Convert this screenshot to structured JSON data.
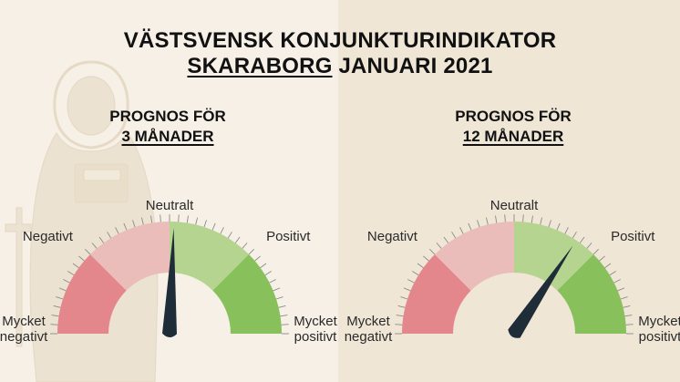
{
  "title": {
    "line1": "VÄSTSVENSK KONJUNKTURINDIKATOR",
    "line2_region": "SKARABORG",
    "line2_rest": "JANUARI 2021"
  },
  "colors": {
    "negative_strong": "#e3878c",
    "negative_light": "#eabdba",
    "positive_light": "#b5d48f",
    "positive_strong": "#88c05c",
    "needle": "#1e2d38",
    "tick": "#8a8a8a"
  },
  "chart_data": [
    {
      "type": "gauge",
      "title_line1": "PROGNOS FÖR",
      "title_line2": "3 MÅNADER",
      "labels": [
        "Mycket negativt",
        "Negativt",
        "Neutralt",
        "Positivt",
        "Mycket positivt"
      ],
      "scale": [
        -2,
        2
      ],
      "value": 0.05
    },
    {
      "type": "gauge",
      "title_line1": "PROGNOS FÖR",
      "title_line2": "12 MÅNADER",
      "labels": [
        "Mycket negativt",
        "Negativt",
        "Neutralt",
        "Positivt",
        "Mycket positivt"
      ],
      "scale": [
        -2,
        2
      ],
      "value": 0.75
    }
  ]
}
